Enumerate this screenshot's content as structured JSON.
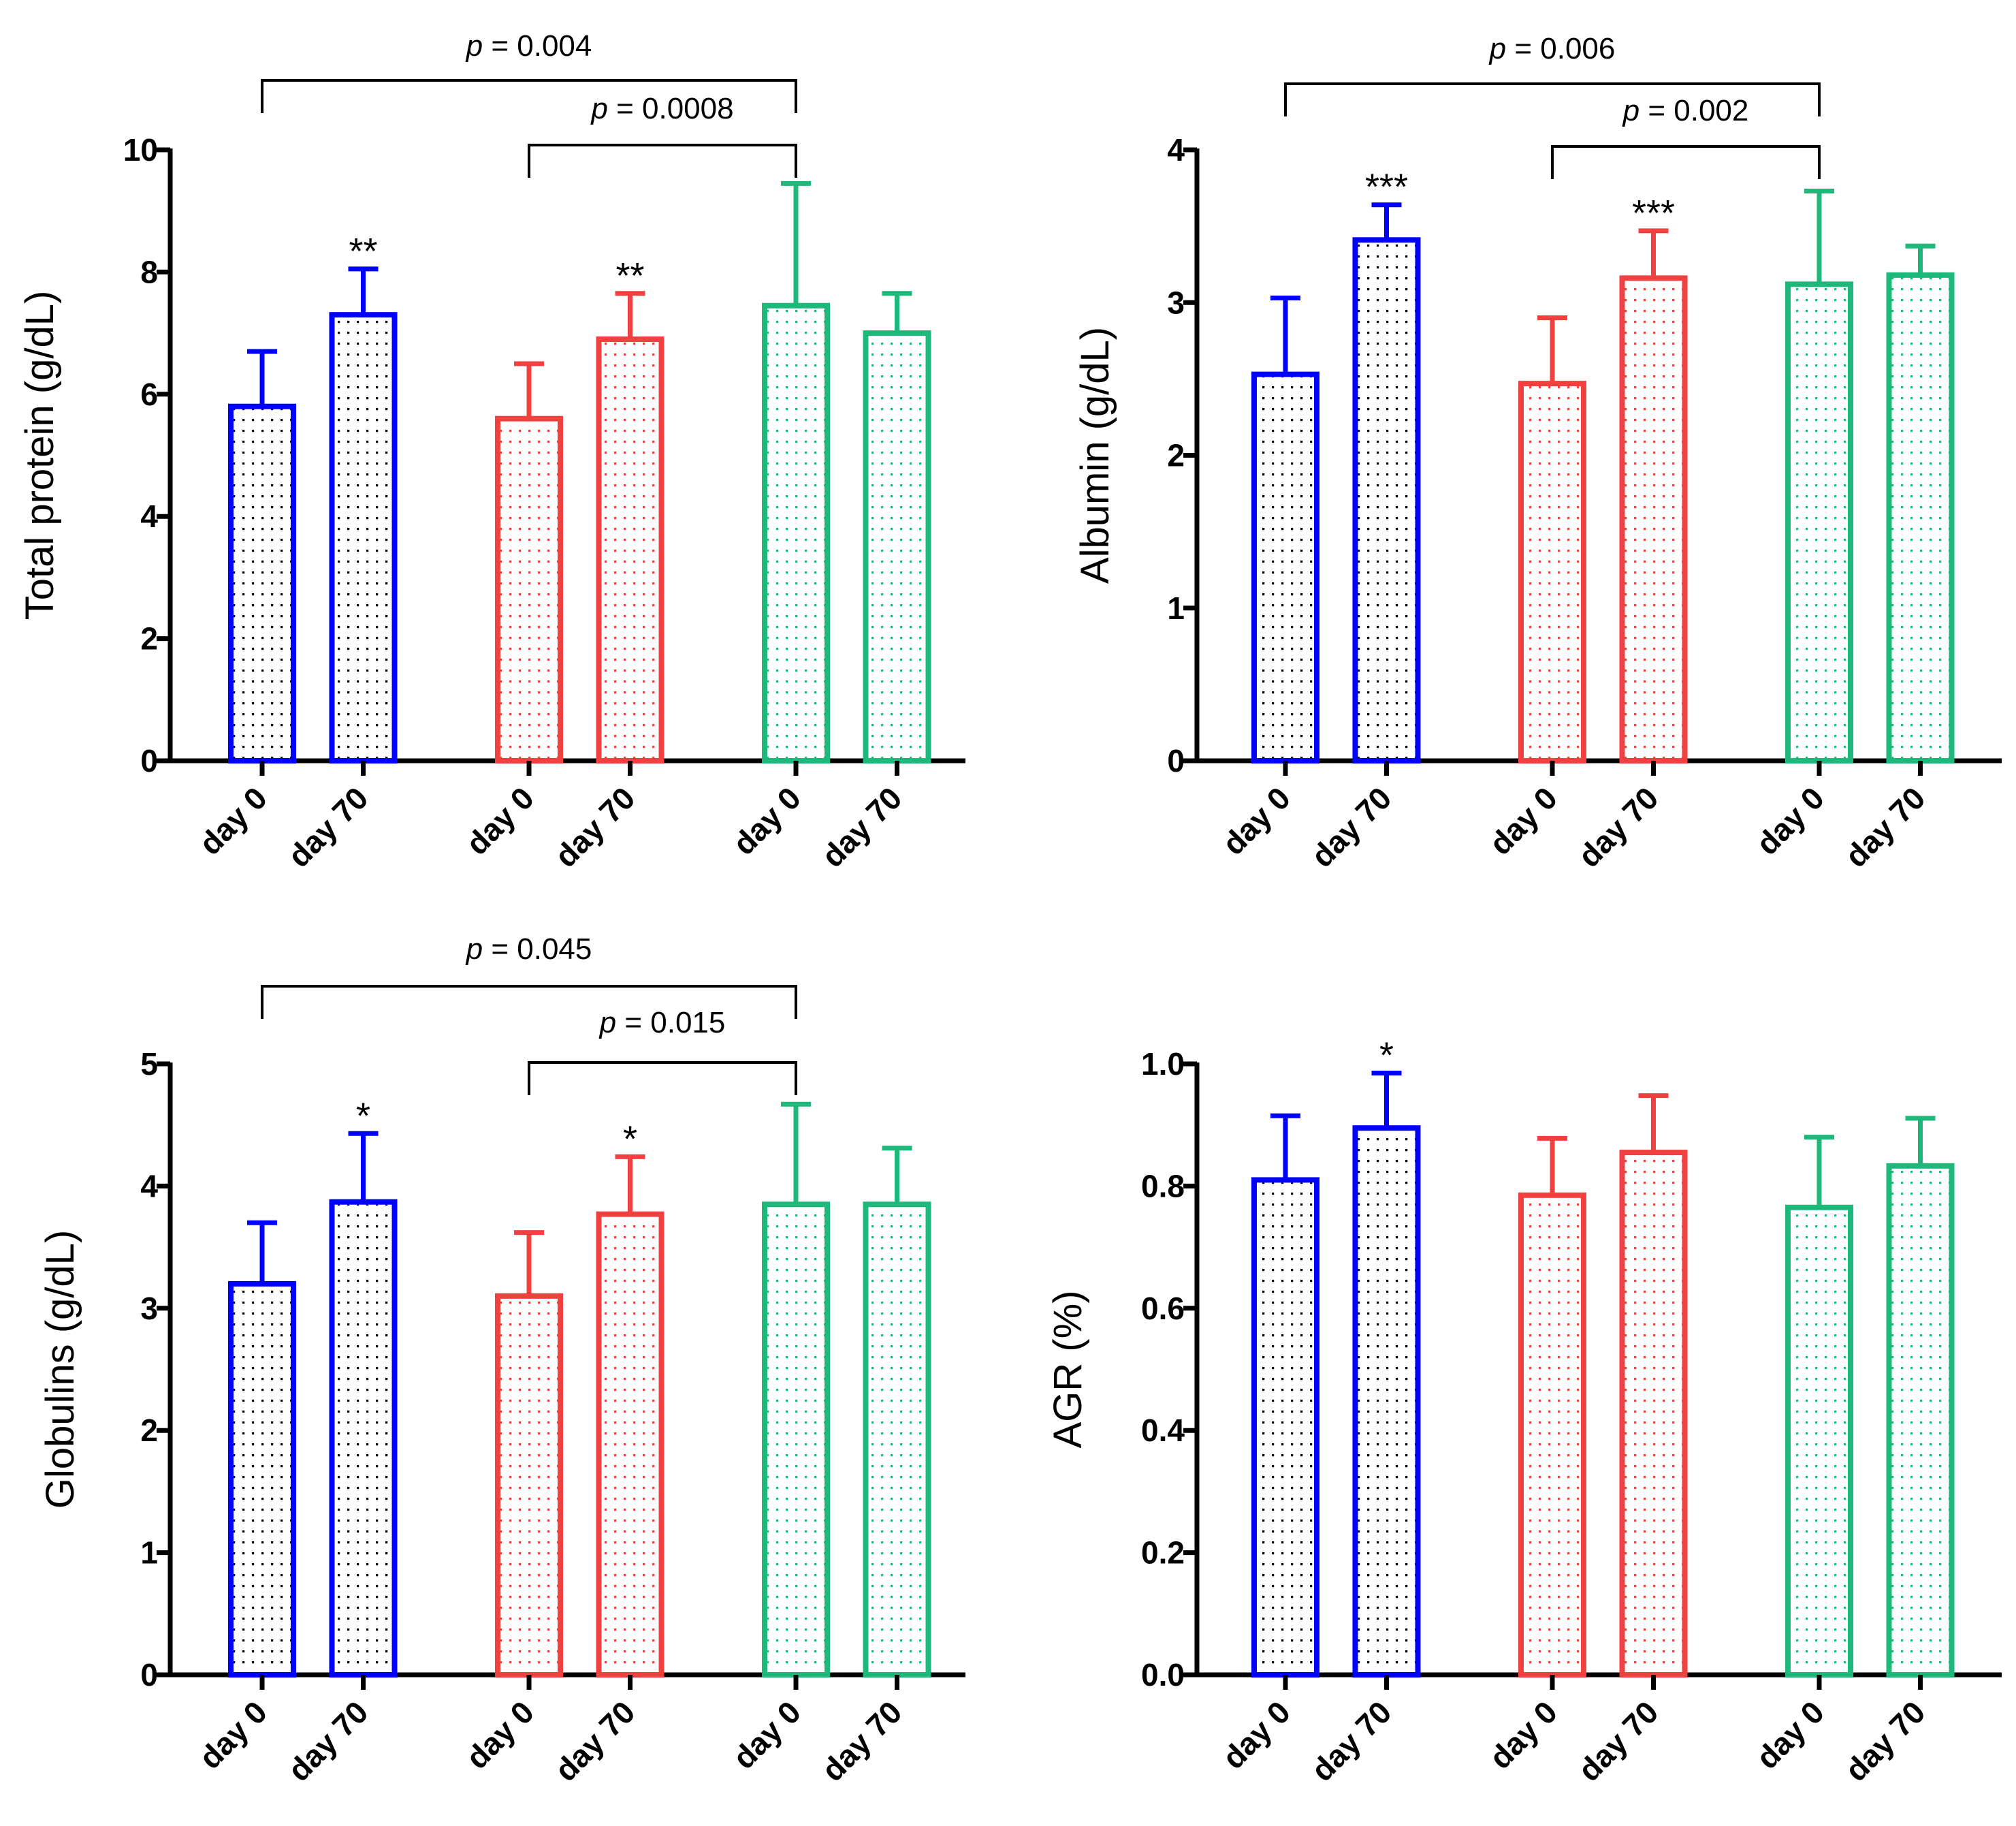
{
  "colors": {
    "day0_fill": "#000000",
    "groups": [
      "#0000ff",
      "#f04040",
      "#1db87a"
    ],
    "axis": "#000000"
  },
  "chart_data": [
    {
      "type": "bar",
      "title": "",
      "xlabel": "",
      "ylabel": "Total protein (g/dL)",
      "ylim": [
        0,
        10
      ],
      "yticks": [
        "0",
        "2",
        "4",
        "6",
        "8",
        "10"
      ],
      "categories": [
        "day 0",
        "day 70",
        "day 0",
        "day 70",
        "day 0",
        "day 70"
      ],
      "values": [
        5.8,
        7.3,
        5.6,
        6.9,
        7.45,
        7.0
      ],
      "errors": [
        0.9,
        0.75,
        0.9,
        0.75,
        2.0,
        0.65
      ],
      "significance": [
        "",
        "**",
        "",
        "**",
        "",
        ""
      ],
      "brackets": [
        {
          "from": 0,
          "to": 4,
          "p_label": "p",
          "p_value": " = 0.004"
        },
        {
          "from": 2,
          "to": 4,
          "p_label": "p",
          "p_value": " = 0.0008"
        }
      ]
    },
    {
      "type": "bar",
      "title": "",
      "xlabel": "",
      "ylabel": "Albumin (g/dL)",
      "ylim": [
        0,
        4
      ],
      "yticks": [
        "0",
        "1",
        "2",
        "3",
        "4"
      ],
      "categories": [
        "day 0",
        "day 70",
        "day 0",
        "day 70",
        "day 0",
        "day 70"
      ],
      "values": [
        2.53,
        3.41,
        2.47,
        3.16,
        3.12,
        3.18
      ],
      "errors": [
        0.5,
        0.23,
        0.43,
        0.31,
        0.61,
        0.19
      ],
      "significance": [
        "",
        "***",
        "",
        "***",
        "",
        ""
      ],
      "brackets": [
        {
          "from": 0,
          "to": 4,
          "p_label": "p",
          "p_value": " = 0.006"
        },
        {
          "from": 2,
          "to": 4,
          "p_label": "p",
          "p_value": " = 0.002"
        }
      ]
    },
    {
      "type": "bar",
      "title": "",
      "xlabel": "",
      "ylabel": "Globulins (g/dL)",
      "ylim": [
        0,
        5
      ],
      "yticks": [
        "0",
        "1",
        "2",
        "3",
        "4",
        "5"
      ],
      "categories": [
        "day 0",
        "day 70",
        "day 0",
        "day 70",
        "day 0",
        "day 70"
      ],
      "values": [
        3.2,
        3.87,
        3.1,
        3.77,
        3.85,
        3.85
      ],
      "errors": [
        0.5,
        0.56,
        0.52,
        0.47,
        0.82,
        0.46
      ],
      "significance": [
        "",
        "*",
        "",
        "*",
        "",
        ""
      ],
      "brackets": [
        {
          "from": 0,
          "to": 4,
          "p_label": "p",
          "p_value": " = 0.045"
        },
        {
          "from": 2,
          "to": 4,
          "p_label": "p",
          "p_value": " = 0.015"
        }
      ]
    },
    {
      "type": "bar",
      "title": "",
      "xlabel": "",
      "ylabel": "AGR (%)",
      "ylim": [
        0,
        1.0
      ],
      "yticks": [
        "0.0",
        "0.2",
        "0.4",
        "0.6",
        "0.8",
        "1.0"
      ],
      "categories": [
        "day 0",
        "day 70",
        "day 0",
        "day 70",
        "day 0",
        "day 70"
      ],
      "values": [
        0.81,
        0.895,
        0.785,
        0.855,
        0.765,
        0.833
      ],
      "errors": [
        0.105,
        0.09,
        0.093,
        0.093,
        0.115,
        0.078
      ],
      "significance": [
        "",
        "*",
        "",
        "",
        "",
        ""
      ],
      "brackets": []
    }
  ]
}
